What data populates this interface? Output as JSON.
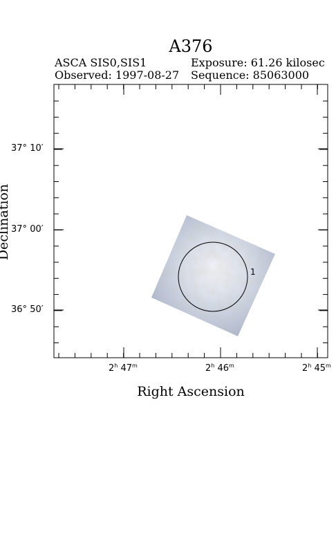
{
  "header": {
    "target": "A376",
    "instrument": "ASCA SIS0,SIS1",
    "exposure": "Exposure: 61.26 kilosec",
    "observed": "Observed: 1997-08-27",
    "sequence": "Sequence: 85063000"
  },
  "axes": {
    "x_label": "Right Ascension",
    "y_label": "Declination",
    "x_ticks": [
      {
        "h": "2",
        "h_unit": "h",
        "m": "47",
        "m_unit": "m"
      },
      {
        "h": "2",
        "h_unit": "h",
        "m": "46",
        "m_unit": "m"
      },
      {
        "h": "2",
        "h_unit": "h",
        "m": "45",
        "m_unit": "m"
      }
    ],
    "y_ticks": [
      {
        "deg": "37",
        "min": "10"
      },
      {
        "deg": "37",
        "min": "00"
      },
      {
        "deg": "36",
        "min": "50"
      }
    ]
  },
  "region": {
    "label": "1"
  },
  "colors": {
    "frame": "#000000",
    "image_outer": "#a7b3cd",
    "image_inner": "#eef1f8"
  }
}
